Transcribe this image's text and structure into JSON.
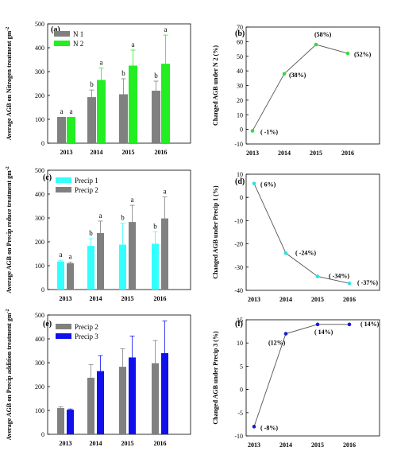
{
  "chart_data": [
    {
      "id": "a",
      "panel_label": "(a)",
      "type": "bar",
      "ylabel": "Average AGB on Nitrogen treatment  gm",
      "ylim": [
        0,
        500
      ],
      "yticks": [
        0,
        100,
        200,
        300,
        400,
        500
      ],
      "categories": [
        "2013",
        "2014",
        "2015",
        "2016"
      ],
      "series": [
        {
          "name": "N 1",
          "color": "#808080",
          "values": [
            110,
            193,
            205,
            220
          ],
          "errors": [
            0,
            30,
            65,
            40
          ],
          "sig": [
            "a",
            "b",
            "b",
            "b"
          ]
        },
        {
          "name": "N 2",
          "color": "#22ee22",
          "values": [
            110,
            265,
            325,
            333
          ],
          "errors": [
            0,
            50,
            65,
            120
          ],
          "sig": [
            "a",
            "a",
            "a",
            "a"
          ]
        }
      ]
    },
    {
      "id": "b",
      "panel_label": "(b)",
      "type": "line",
      "ylabel": "Changed AGB under N 2 (%)",
      "ylim": [
        -10,
        70
      ],
      "yticks": [
        -10,
        0,
        10,
        20,
        30,
        40,
        50,
        60,
        70
      ],
      "categories": [
        "2013",
        "2014",
        "2015",
        "2016"
      ],
      "values": [
        -1,
        38,
        58,
        52
      ],
      "point_color": "#33dd33",
      "labels": [
        "( -1%)",
        "(38%)",
        "(58%)",
        "(52%)"
      ]
    },
    {
      "id": "c",
      "panel_label": "(c)",
      "type": "bar",
      "ylabel": "Average AGB on Precip reduce treatment  gm",
      "ylim": [
        0,
        500
      ],
      "yticks": [
        0,
        100,
        200,
        300,
        400,
        500
      ],
      "categories": [
        "2013",
        "2014",
        "2015",
        "2016"
      ],
      "series": [
        {
          "name": "Precip 1",
          "color": "#33ffff",
          "values": [
            118,
            183,
            188,
            192
          ],
          "errors": [
            5,
            30,
            90,
            50
          ],
          "sig": [
            "a",
            "b",
            "b",
            "b"
          ]
        },
        {
          "name": "Precip 2",
          "color": "#808080",
          "values": [
            110,
            237,
            283,
            298
          ],
          "errors": [
            5,
            50,
            70,
            90
          ],
          "sig": [
            "a",
            "a",
            "a",
            "a"
          ]
        }
      ]
    },
    {
      "id": "d",
      "panel_label": "(d)",
      "type": "line",
      "ylabel": "Changed AGB under Precip 1 (%)",
      "ylim": [
        -40,
        10
      ],
      "yticks": [
        -40,
        -30,
        -20,
        -10,
        0,
        10
      ],
      "categories": [
        "2013",
        "2014",
        "2015",
        "2016"
      ],
      "values": [
        6,
        -24,
        -34,
        -37
      ],
      "point_color": "#33dddd",
      "labels": [
        "( 6%)",
        "( -24%)",
        "( -34%)",
        "( -37%)"
      ]
    },
    {
      "id": "e",
      "panel_label": "(e)",
      "type": "bar",
      "ylabel": "Average AGB on Precip addition  treatment  gm",
      "ylim": [
        0,
        500
      ],
      "yticks": [
        0,
        100,
        200,
        300,
        400,
        500
      ],
      "categories": [
        "2013",
        "2014",
        "2015",
        "2016"
      ],
      "series": [
        {
          "name": "Precip 2",
          "color": "#808080",
          "values": [
            110,
            237,
            283,
            298
          ],
          "errors": [
            5,
            55,
            75,
            95
          ]
        },
        {
          "name": "Precip 3",
          "color": "#1010ee",
          "values": [
            103,
            265,
            322,
            340
          ],
          "errors": [
            3,
            65,
            90,
            135
          ]
        }
      ]
    },
    {
      "id": "f",
      "panel_label": "(f)",
      "type": "line",
      "ylabel": "Changed AGB under Precip 3 (%)",
      "ylim": [
        -10,
        15
      ],
      "yticks": [
        -10,
        -5,
        0,
        5,
        10,
        15
      ],
      "categories": [
        "2013",
        "2014",
        "2015",
        "2016"
      ],
      "values": [
        -8,
        12,
        14,
        14
      ],
      "point_color": "#1a1acc",
      "labels": [
        "( -8%)",
        "(12%)",
        "( 14%)",
        "( 14%)"
      ]
    }
  ]
}
